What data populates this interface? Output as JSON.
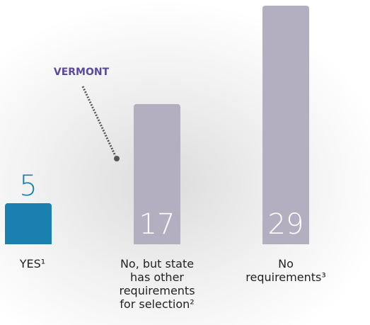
{
  "chart_data": {
    "type": "bar",
    "categories": [
      "YES¹",
      "No, but state has other requirements for selection²",
      "No requirements³"
    ],
    "values": [
      5,
      17,
      29
    ],
    "colors": [
      "#1b80b0",
      "#b4afc0",
      "#b4afc0"
    ],
    "annotation": "VERMONT"
  }
}
